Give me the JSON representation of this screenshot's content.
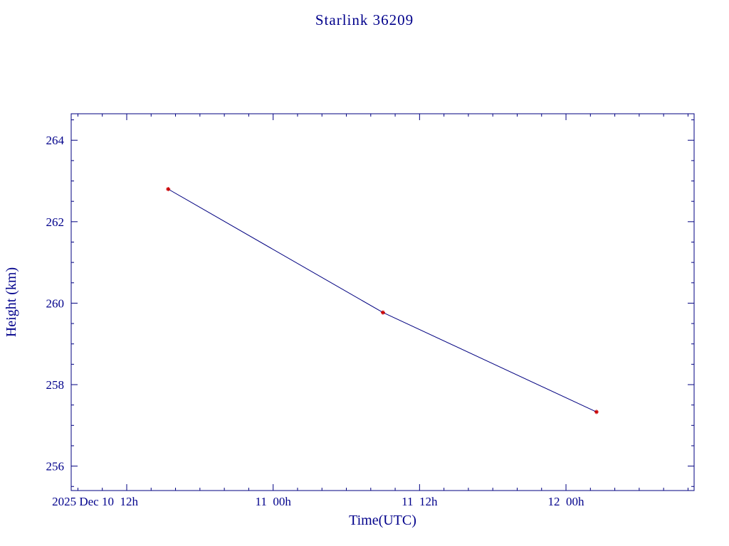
{
  "title": "Starlink 36209",
  "chart_data": {
    "type": "line",
    "title": "Starlink 36209",
    "xlabel": "Time(UTC)",
    "ylabel": "Height (km)",
    "x_unit": "hours since 2025 Dec 10 12:00 UTC",
    "xlim": [
      -4.55,
      46.5
    ],
    "ylim": [
      255.4,
      264.65
    ],
    "grid": false,
    "legend": "none",
    "x_ticks": [
      {
        "h": 0,
        "label": "2025 Dec 10  12h",
        "align": "end",
        "dx": 16
      },
      {
        "h": 12,
        "label": "11  00h",
        "align": "middle",
        "dx": 0
      },
      {
        "h": 24,
        "label": "11  12h",
        "align": "middle",
        "dx": 0
      },
      {
        "h": 36,
        "label": "12  00h",
        "align": "middle",
        "dx": 0
      }
    ],
    "x_minor_step_hours": 2,
    "y_ticks": [
      256,
      258,
      260,
      262,
      264
    ],
    "y_minor_step": 0.5,
    "series": [
      {
        "name": "height",
        "x_hours": [
          3.4,
          21.0,
          38.5
        ],
        "y_km": [
          262.8,
          259.77,
          257.33
        ]
      }
    ],
    "colors": {
      "axis": "#000080",
      "line": "#000080",
      "marker": "#cc0000",
      "text": "#00008B"
    }
  }
}
